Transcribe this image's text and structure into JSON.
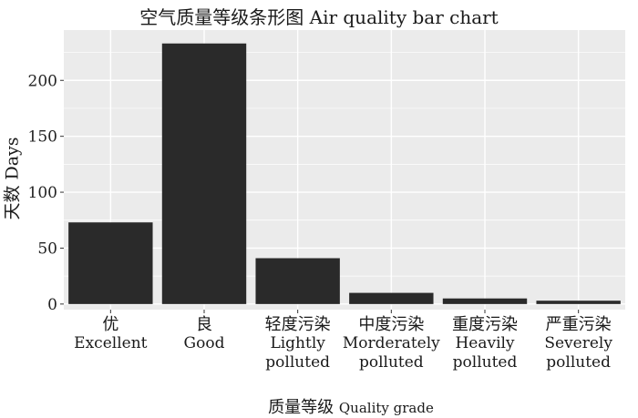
{
  "chart_data": {
    "type": "bar",
    "title": "空气质量等级条形图 Air quality bar chart",
    "xlabel": {
      "zh": "质量等级",
      "en": "Quality grade"
    },
    "ylabel": "天数 Days",
    "categories": [
      {
        "zh": "优",
        "en": [
          "Excellent"
        ]
      },
      {
        "zh": "良",
        "en": [
          "Good"
        ]
      },
      {
        "zh": "轻度污染",
        "en": [
          "Lightly",
          "polluted"
        ]
      },
      {
        "zh": "中度污染",
        "en": [
          "Morderately",
          "polluted"
        ]
      },
      {
        "zh": "重度污染",
        "en": [
          "Heavily",
          "polluted"
        ]
      },
      {
        "zh": "严重污染",
        "en": [
          "Severely",
          "polluted"
        ]
      }
    ],
    "values": [
      73,
      233,
      41,
      10,
      5,
      3
    ],
    "ylim": [
      -5,
      245
    ],
    "yticks": [
      0,
      50,
      100,
      150,
      200
    ],
    "grid": true,
    "colors": {
      "bar": "#2a2a2a",
      "panel": "#ebebeb",
      "grid": "#ffffff"
    }
  }
}
